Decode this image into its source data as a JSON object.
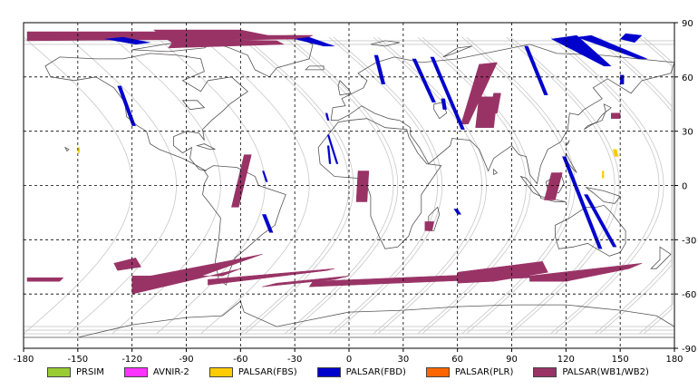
{
  "map": {
    "x_ticks": [
      "-180",
      "-150",
      "-120",
      "-90",
      "-60",
      "-30",
      "0",
      "30",
      "60",
      "90",
      "120",
      "150",
      "180"
    ],
    "y_ticks": [
      "90",
      "60",
      "30",
      "0",
      "-30",
      "-60",
      "-90"
    ],
    "lon_range": [
      -180,
      180
    ],
    "lat_range": [
      -90,
      90
    ],
    "grid": "dashed, every 30 degrees",
    "projection": "equirectangular"
  },
  "legend": [
    {
      "label": "PRSIM",
      "color": "#99cc33"
    },
    {
      "label": "AVNIR-2",
      "color": "#ff33ff"
    },
    {
      "label": "PALSAR(FBS)",
      "color": "#ffcc00"
    },
    {
      "label": "PALSAR(FBD)",
      "color": "#0000cc"
    },
    {
      "label": "PALSAR(PLR)",
      "color": "#ff6600"
    },
    {
      "label": "PALSAR(WB1/WB2)",
      "color": "#993366"
    }
  ],
  "colors": {
    "coastline": "#555555",
    "orbit_tracks": "#c8c8c8",
    "grid": "#000000"
  }
}
